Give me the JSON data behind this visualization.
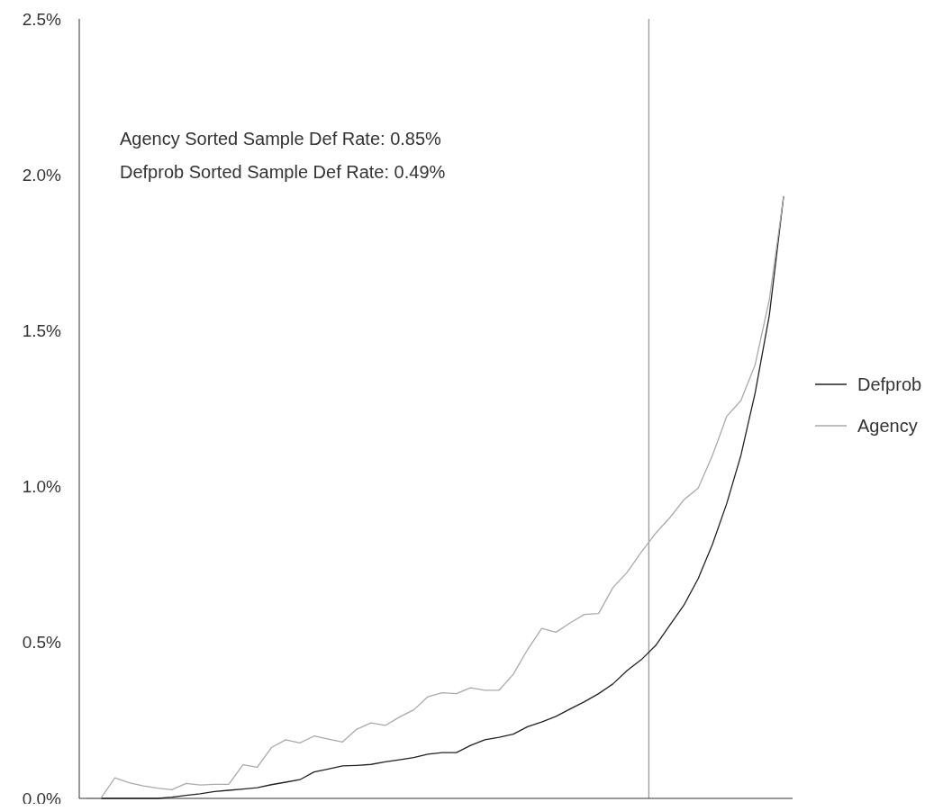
{
  "chart_data": {
    "type": "line",
    "categories": [
      null,
      null,
      null,
      null,
      null,
      null,
      null,
      null,
      null,
      null,
      null,
      null,
      null,
      null,
      null,
      null,
      null,
      null,
      null,
      null,
      null,
      null,
      null,
      null,
      null,
      null,
      null,
      null,
      null,
      null,
      null,
      null,
      null,
      null,
      null,
      null,
      null,
      null,
      null,
      null,
      null,
      null,
      null,
      null,
      null,
      null,
      null,
      null,
      null,
      null
    ],
    "ylim": [
      0,
      2.5
    ],
    "yticks": [
      {
        "value": 0,
        "label": "0.0%"
      },
      {
        "value": 0.5,
        "label": "0.5%"
      },
      {
        "value": 1,
        "label": "1.0%"
      },
      {
        "value": 1.5,
        "label": "1.5%"
      },
      {
        "value": 2,
        "label": "2.0%"
      },
      {
        "value": 2.5,
        "label": "2.5%"
      }
    ],
    "tick_labels": "y",
    "grid": false,
    "legend": "right",
    "line_style": "solid",
    "marker": "none",
    "series": [
      {
        "name": "Defprob",
        "color": "#222222",
        "values": [
          0,
          0,
          0,
          0,
          0,
          0,
          0.004,
          0.01,
          0.015,
          0.022,
          0.026,
          0.03,
          0.034,
          0.044,
          0.052,
          0.06,
          0.085,
          0.094,
          0.104,
          0.106,
          0.109,
          0.117,
          0.124,
          0.131,
          0.142,
          0.147,
          0.147,
          0.17,
          0.188,
          0.196,
          0.206,
          0.23,
          0.245,
          0.263,
          0.287,
          0.31,
          0.336,
          0.367,
          0.41,
          0.445,
          0.49,
          0.555,
          0.62,
          0.705,
          0.815,
          0.945,
          1.1,
          1.3,
          1.55,
          1.93
        ]
      },
      {
        "name": "Agency",
        "color": "#aaaaaa",
        "values": [
          0,
          0,
          0.066,
          0.05,
          0.04,
          0.033,
          0.028,
          0.048,
          0.043,
          0.045,
          0.045,
          0.108,
          0.1,
          0.163,
          0.188,
          0.178,
          0.2,
          0.19,
          0.181,
          0.222,
          0.242,
          0.234,
          0.261,
          0.284,
          0.326,
          0.339,
          0.336,
          0.355,
          0.347,
          0.347,
          0.398,
          0.477,
          0.545,
          0.533,
          0.563,
          0.59,
          0.593,
          0.676,
          0.725,
          0.79,
          0.85,
          0.9,
          0.958,
          0.995,
          1.1,
          1.225,
          1.276,
          1.391,
          1.6,
          1.93
        ]
      }
    ],
    "annotations": [
      "Agency Sorted Sample Def Rate: 0.85%",
      "Defprob Sorted Sample Def Rate: 0.49%"
    ]
  }
}
